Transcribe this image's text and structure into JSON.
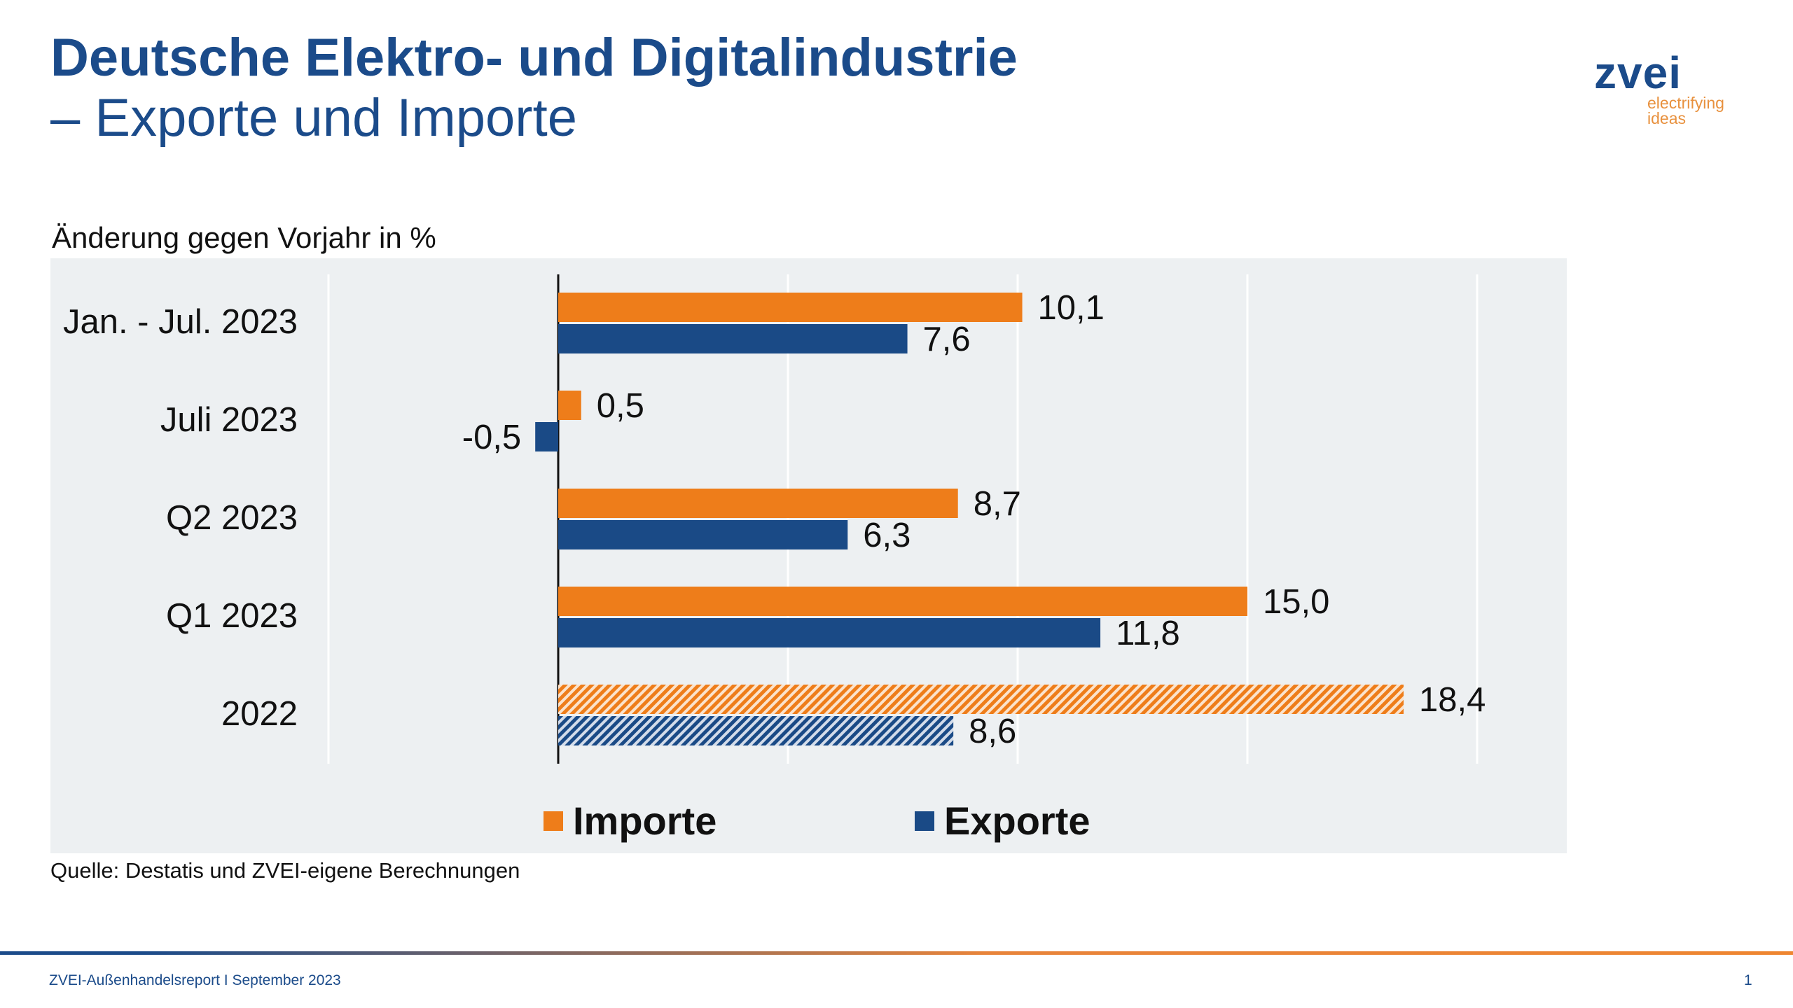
{
  "header": {
    "title_line1": "Deutsche Elektro- und Digitalindustrie",
    "title_line2": "– Exporte und Importe"
  },
  "logo": {
    "brand": "zvei",
    "tagline_1": "electrifying",
    "tagline_2": "ideas"
  },
  "colors": {
    "importe": "#ee7d1a",
    "exporte": "#1a4a86",
    "panel": "#edf0f2",
    "title": "#1b4b8a"
  },
  "chart_data": {
    "type": "bar",
    "orientation": "horizontal",
    "ylabel": "Änderung gegen Vorjahr in %",
    "categories": [
      "Jan. - Jul. 2023",
      "Juli 2023",
      "Q2 2023",
      "Q1 2023",
      "2022"
    ],
    "series": [
      {
        "name": "Importe",
        "values": [
          10.1,
          0.5,
          8.7,
          15.0,
          18.4
        ],
        "labels": [
          "10,1",
          "0,5",
          "8,7",
          "15,0",
          "18,4"
        ]
      },
      {
        "name": "Exporte",
        "values": [
          7.6,
          -0.5,
          6.3,
          11.8,
          8.6
        ],
        "labels": [
          "7,6",
          "-0,5",
          "6,3",
          "11,8",
          "8,6"
        ]
      }
    ],
    "hatched_categories": [
      "2022"
    ],
    "xlim": [
      -5,
      20
    ],
    "grid_step": 5,
    "grid": true,
    "legend": "bottom"
  },
  "source": "Quelle: Destatis und ZVEI-eigene Berechnungen",
  "footer": {
    "text": "ZVEI-Außenhandelsreport I September 2023",
    "page": "1"
  }
}
